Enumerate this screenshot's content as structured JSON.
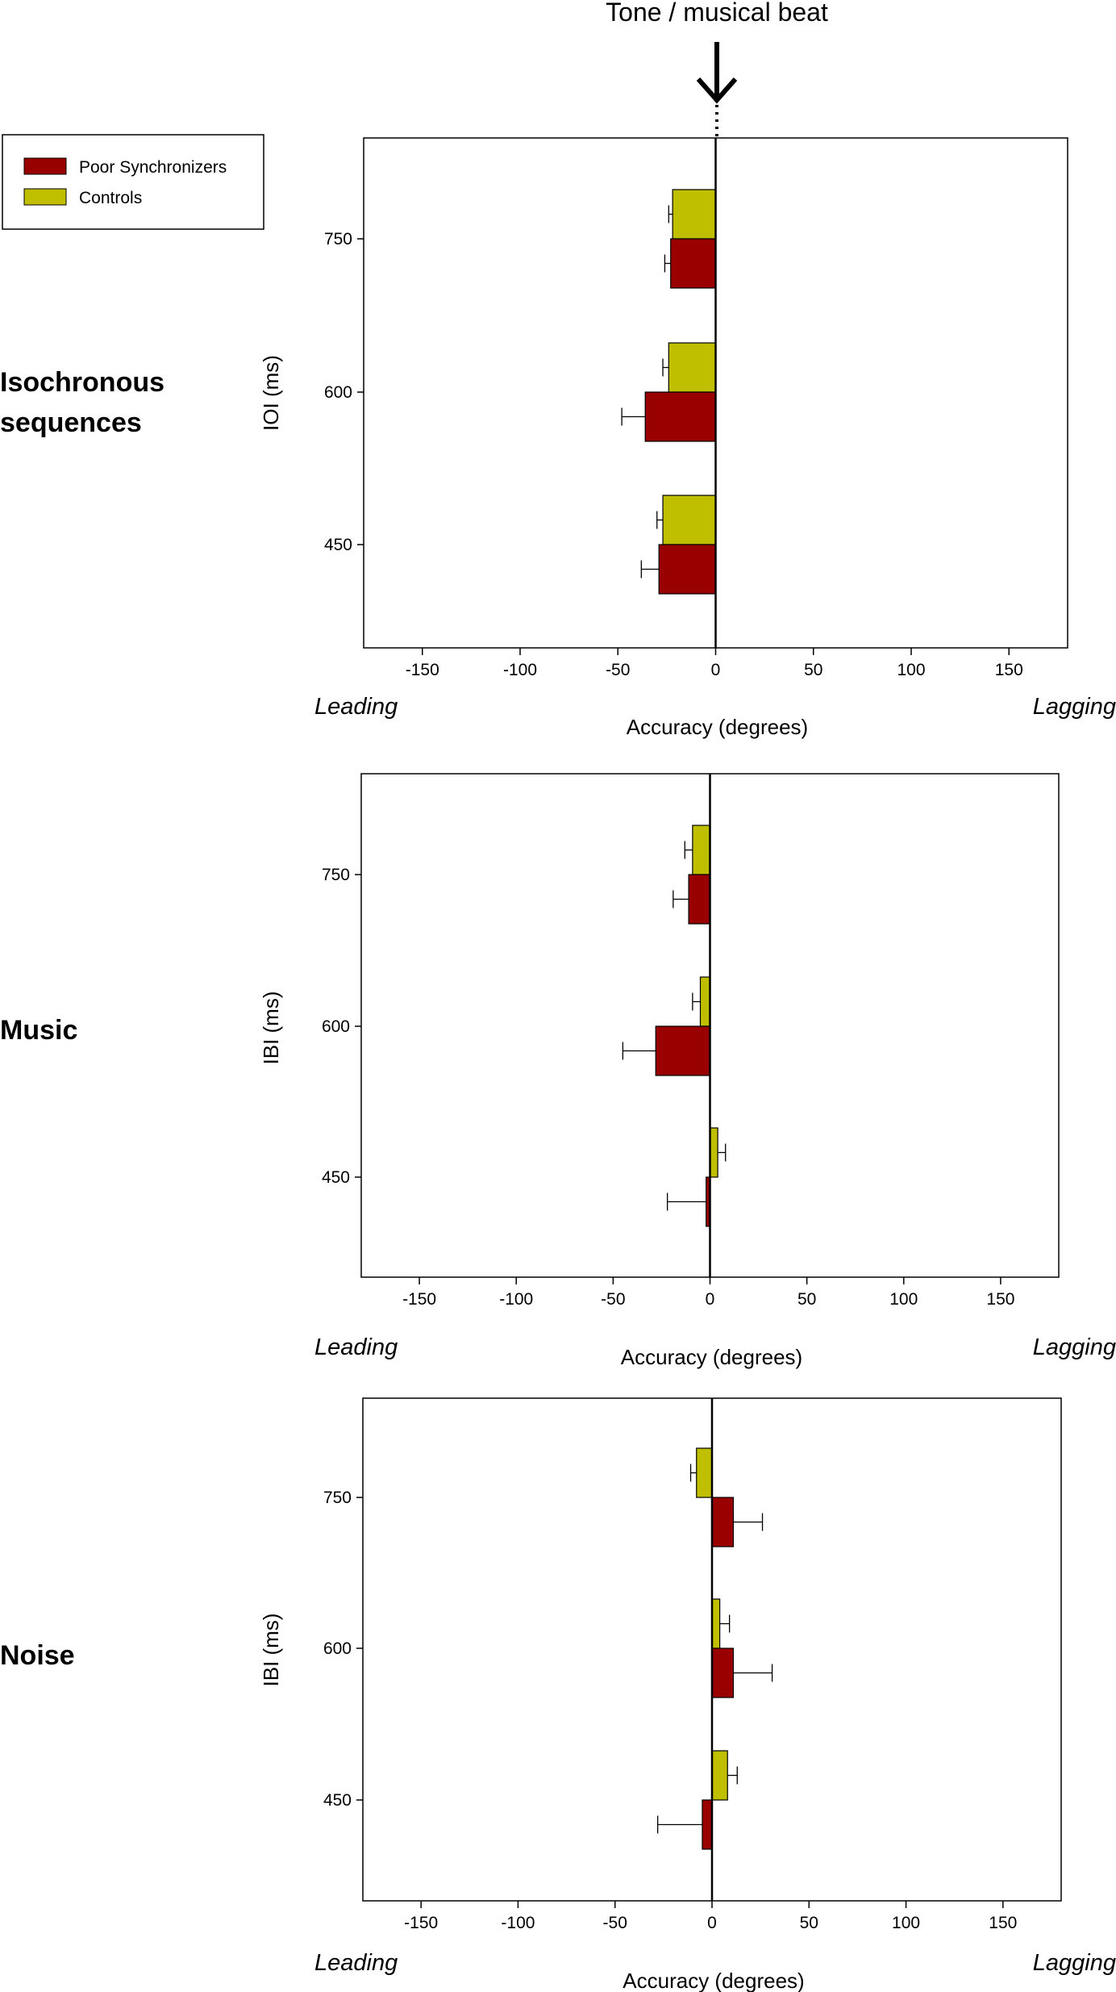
{
  "header": {
    "title": "Tone / musical beat"
  },
  "legend": {
    "entries": [
      {
        "label": "Poor Synchronizers",
        "color": "#990000"
      },
      {
        "label": "Controls",
        "color": "#bfbf00"
      }
    ]
  },
  "colors": {
    "poor": "#990000",
    "controls": "#bfbf00",
    "axis": "#000000"
  },
  "side_labels": {
    "leading": "Leading",
    "lagging": "Lagging"
  },
  "chart_data": [
    {
      "type": "bar",
      "orientation": "horizontal",
      "row_label": [
        "Isochronous",
        "sequences"
      ],
      "ylabel": "IOI (ms)",
      "xlabel": "Accuracy (degrees)",
      "xlim": [
        -180,
        180
      ],
      "x_ticks": [
        -150,
        -100,
        -50,
        0,
        50,
        100,
        150
      ],
      "categories": [
        "750",
        "600",
        "450"
      ],
      "series": [
        {
          "name": "Controls",
          "values": [
            -22,
            -24,
            -27
          ],
          "error": [
            2,
            3,
            3
          ]
        },
        {
          "name": "Poor Synchronizers",
          "values": [
            -23,
            -36,
            -29
          ],
          "error": [
            3,
            12,
            9
          ]
        }
      ]
    },
    {
      "type": "bar",
      "orientation": "horizontal",
      "row_label": [
        "Music"
      ],
      "ylabel": "IBI (ms)",
      "xlabel": "Accuracy (degrees)",
      "xlim": [
        -180,
        180
      ],
      "x_ticks": [
        -150,
        -100,
        -50,
        0,
        50,
        100,
        150
      ],
      "categories": [
        "750",
        "600",
        "450"
      ],
      "series": [
        {
          "name": "Controls",
          "values": [
            -9,
            -5,
            4
          ],
          "error": [
            4,
            4,
            4
          ]
        },
        {
          "name": "Poor Synchronizers",
          "values": [
            -11,
            -28,
            -2
          ],
          "error": [
            8,
            17,
            20
          ]
        }
      ]
    },
    {
      "type": "bar",
      "orientation": "horizontal",
      "row_label": [
        "Noise"
      ],
      "ylabel": "IBI (ms)",
      "xlabel": "Accuracy (degrees)",
      "xlim": [
        -180,
        180
      ],
      "x_ticks": [
        -150,
        -100,
        -50,
        0,
        50,
        100,
        150
      ],
      "categories": [
        "750",
        "600",
        "450"
      ],
      "series": [
        {
          "name": "Controls",
          "values": [
            -8,
            4,
            8
          ],
          "error": [
            3,
            5,
            5
          ]
        },
        {
          "name": "Poor Synchronizers",
          "values": [
            11,
            11,
            -5
          ],
          "error": [
            15,
            20,
            23
          ]
        }
      ]
    }
  ]
}
